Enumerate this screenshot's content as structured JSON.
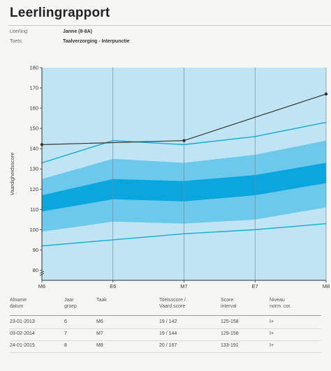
{
  "header": {
    "title": "Leerlingrapport",
    "student_label": "Leerling:",
    "student_value": "Janne (8-8A)",
    "test_label": "Toets:",
    "test_value": "Taalverzorging - Interpunctie"
  },
  "colors": {
    "band_light": "#c5e7f6",
    "band_mid": "#6cc9ec",
    "band_dark": "#0aa6de",
    "band_outer": "#bfe4f4",
    "limit_line": "#1aa8d6",
    "score_line": "#333333"
  },
  "chart_data": {
    "type": "line",
    "ylabel": "Vaardigheidsscore",
    "xlabel": "",
    "categories": [
      "M6",
      "E6",
      "M7",
      "E7",
      "M8"
    ],
    "ylim": [
      75,
      180
    ],
    "yticks": [
      80,
      90,
      100,
      110,
      120,
      130,
      140,
      150,
      160,
      170,
      180
    ],
    "grid": "vertical",
    "bands": {
      "outer_top": [
        133,
        144,
        142,
        146,
        153
      ],
      "band1_top": [
        125,
        135,
        133,
        137,
        144
      ],
      "band2_top": [
        117,
        125,
        124,
        127,
        133
      ],
      "band2_bottom": [
        109,
        115,
        114,
        117,
        123
      ],
      "band1_bottom": [
        99,
        104,
        103,
        105,
        111
      ],
      "outer_bottom": [
        92,
        95,
        98,
        100,
        103
      ]
    },
    "series": [
      {
        "name": "",
        "points": [
          [
            "M6",
            142
          ],
          [
            "M7",
            144
          ],
          [
            "M8",
            167
          ]
        ]
      }
    ]
  },
  "table": {
    "headers": [
      [
        "Afname",
        "datum"
      ],
      [
        "Jaar",
        "groep"
      ],
      [
        "",
        "Taak"
      ],
      [
        "Toetsscore /",
        "Vaard.score"
      ],
      [
        "Score",
        "interval"
      ],
      [
        "Niveau",
        "norm. cor."
      ]
    ],
    "rows": [
      [
        "23-01-2013",
        "6",
        "M6",
        "19 / 142",
        "125-158",
        "I+"
      ],
      [
        "03-02-2014",
        "7",
        "M7",
        "19 / 144",
        "129-158",
        "I+"
      ],
      [
        "24-01-2015",
        "8",
        "M8",
        "20 / 167",
        "133-191",
        "I+"
      ]
    ]
  }
}
